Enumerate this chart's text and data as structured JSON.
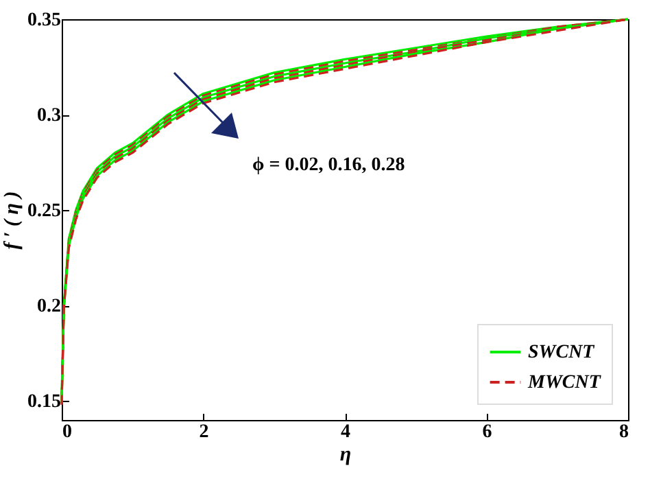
{
  "chart_data": {
    "type": "line",
    "xlabel": "η",
    "ylabel": "f ′ ( η )",
    "xlim": [
      0,
      8
    ],
    "ylim": [
      0.14,
      0.35
    ],
    "xticks": [
      0,
      2,
      4,
      6,
      8
    ],
    "yticks": [
      0.15,
      0.2,
      0.25,
      0.3,
      0.35
    ],
    "grid": false,
    "legend": "bottom right",
    "marker": "none",
    "x": [
      0,
      0.03,
      0.1,
      0.2,
      0.3,
      0.5,
      0.75,
      1,
      1.5,
      2,
      3,
      4,
      5,
      6,
      7,
      8
    ],
    "annotations": [
      "ϕ = 0.02, 0.16, 0.28"
    ],
    "series": [
      {
        "name": "SWCNT",
        "color": "#00ee00",
        "line_style": "solid",
        "values": [
          0.153,
          0.2,
          0.235,
          0.25,
          0.26,
          0.272,
          0.28,
          0.285,
          0.3,
          0.311,
          0.322,
          0.329,
          0.335,
          0.341,
          0.346,
          0.35
        ]
      },
      {
        "name": "MWCNT",
        "color": "#cc2222",
        "line_style": "dashed",
        "values": [
          0.152,
          0.2,
          0.234,
          0.249,
          0.259,
          0.271,
          0.279,
          0.284,
          0.299,
          0.31,
          0.321,
          0.328,
          0.334,
          0.34,
          0.346,
          0.35
        ]
      },
      {
        "color": "#00ee00",
        "line_style": "solid",
        "values": [
          0.151,
          0.199,
          0.233,
          0.248,
          0.258,
          0.27,
          0.278,
          0.283,
          0.298,
          0.309,
          0.32,
          0.327,
          0.333,
          0.34,
          0.345,
          0.35
        ]
      },
      {
        "color": "#cc2222",
        "line_style": "dashed",
        "values": [
          0.15,
          0.199,
          0.232,
          0.247,
          0.257,
          0.269,
          0.277,
          0.282,
          0.297,
          0.308,
          0.319,
          0.326,
          0.333,
          0.339,
          0.345,
          0.35
        ]
      },
      {
        "color": "#00ee00",
        "line_style": "solid",
        "values": [
          0.149,
          0.198,
          0.231,
          0.246,
          0.256,
          0.268,
          0.276,
          0.281,
          0.296,
          0.307,
          0.318,
          0.325,
          0.332,
          0.338,
          0.345,
          0.35
        ]
      },
      {
        "color": "#cc2222",
        "line_style": "dashed",
        "values": [
          0.148,
          0.198,
          0.23,
          0.245,
          0.255,
          0.267,
          0.275,
          0.28,
          0.295,
          0.306,
          0.317,
          0.324,
          0.331,
          0.338,
          0.344,
          0.35
        ]
      }
    ]
  }
}
